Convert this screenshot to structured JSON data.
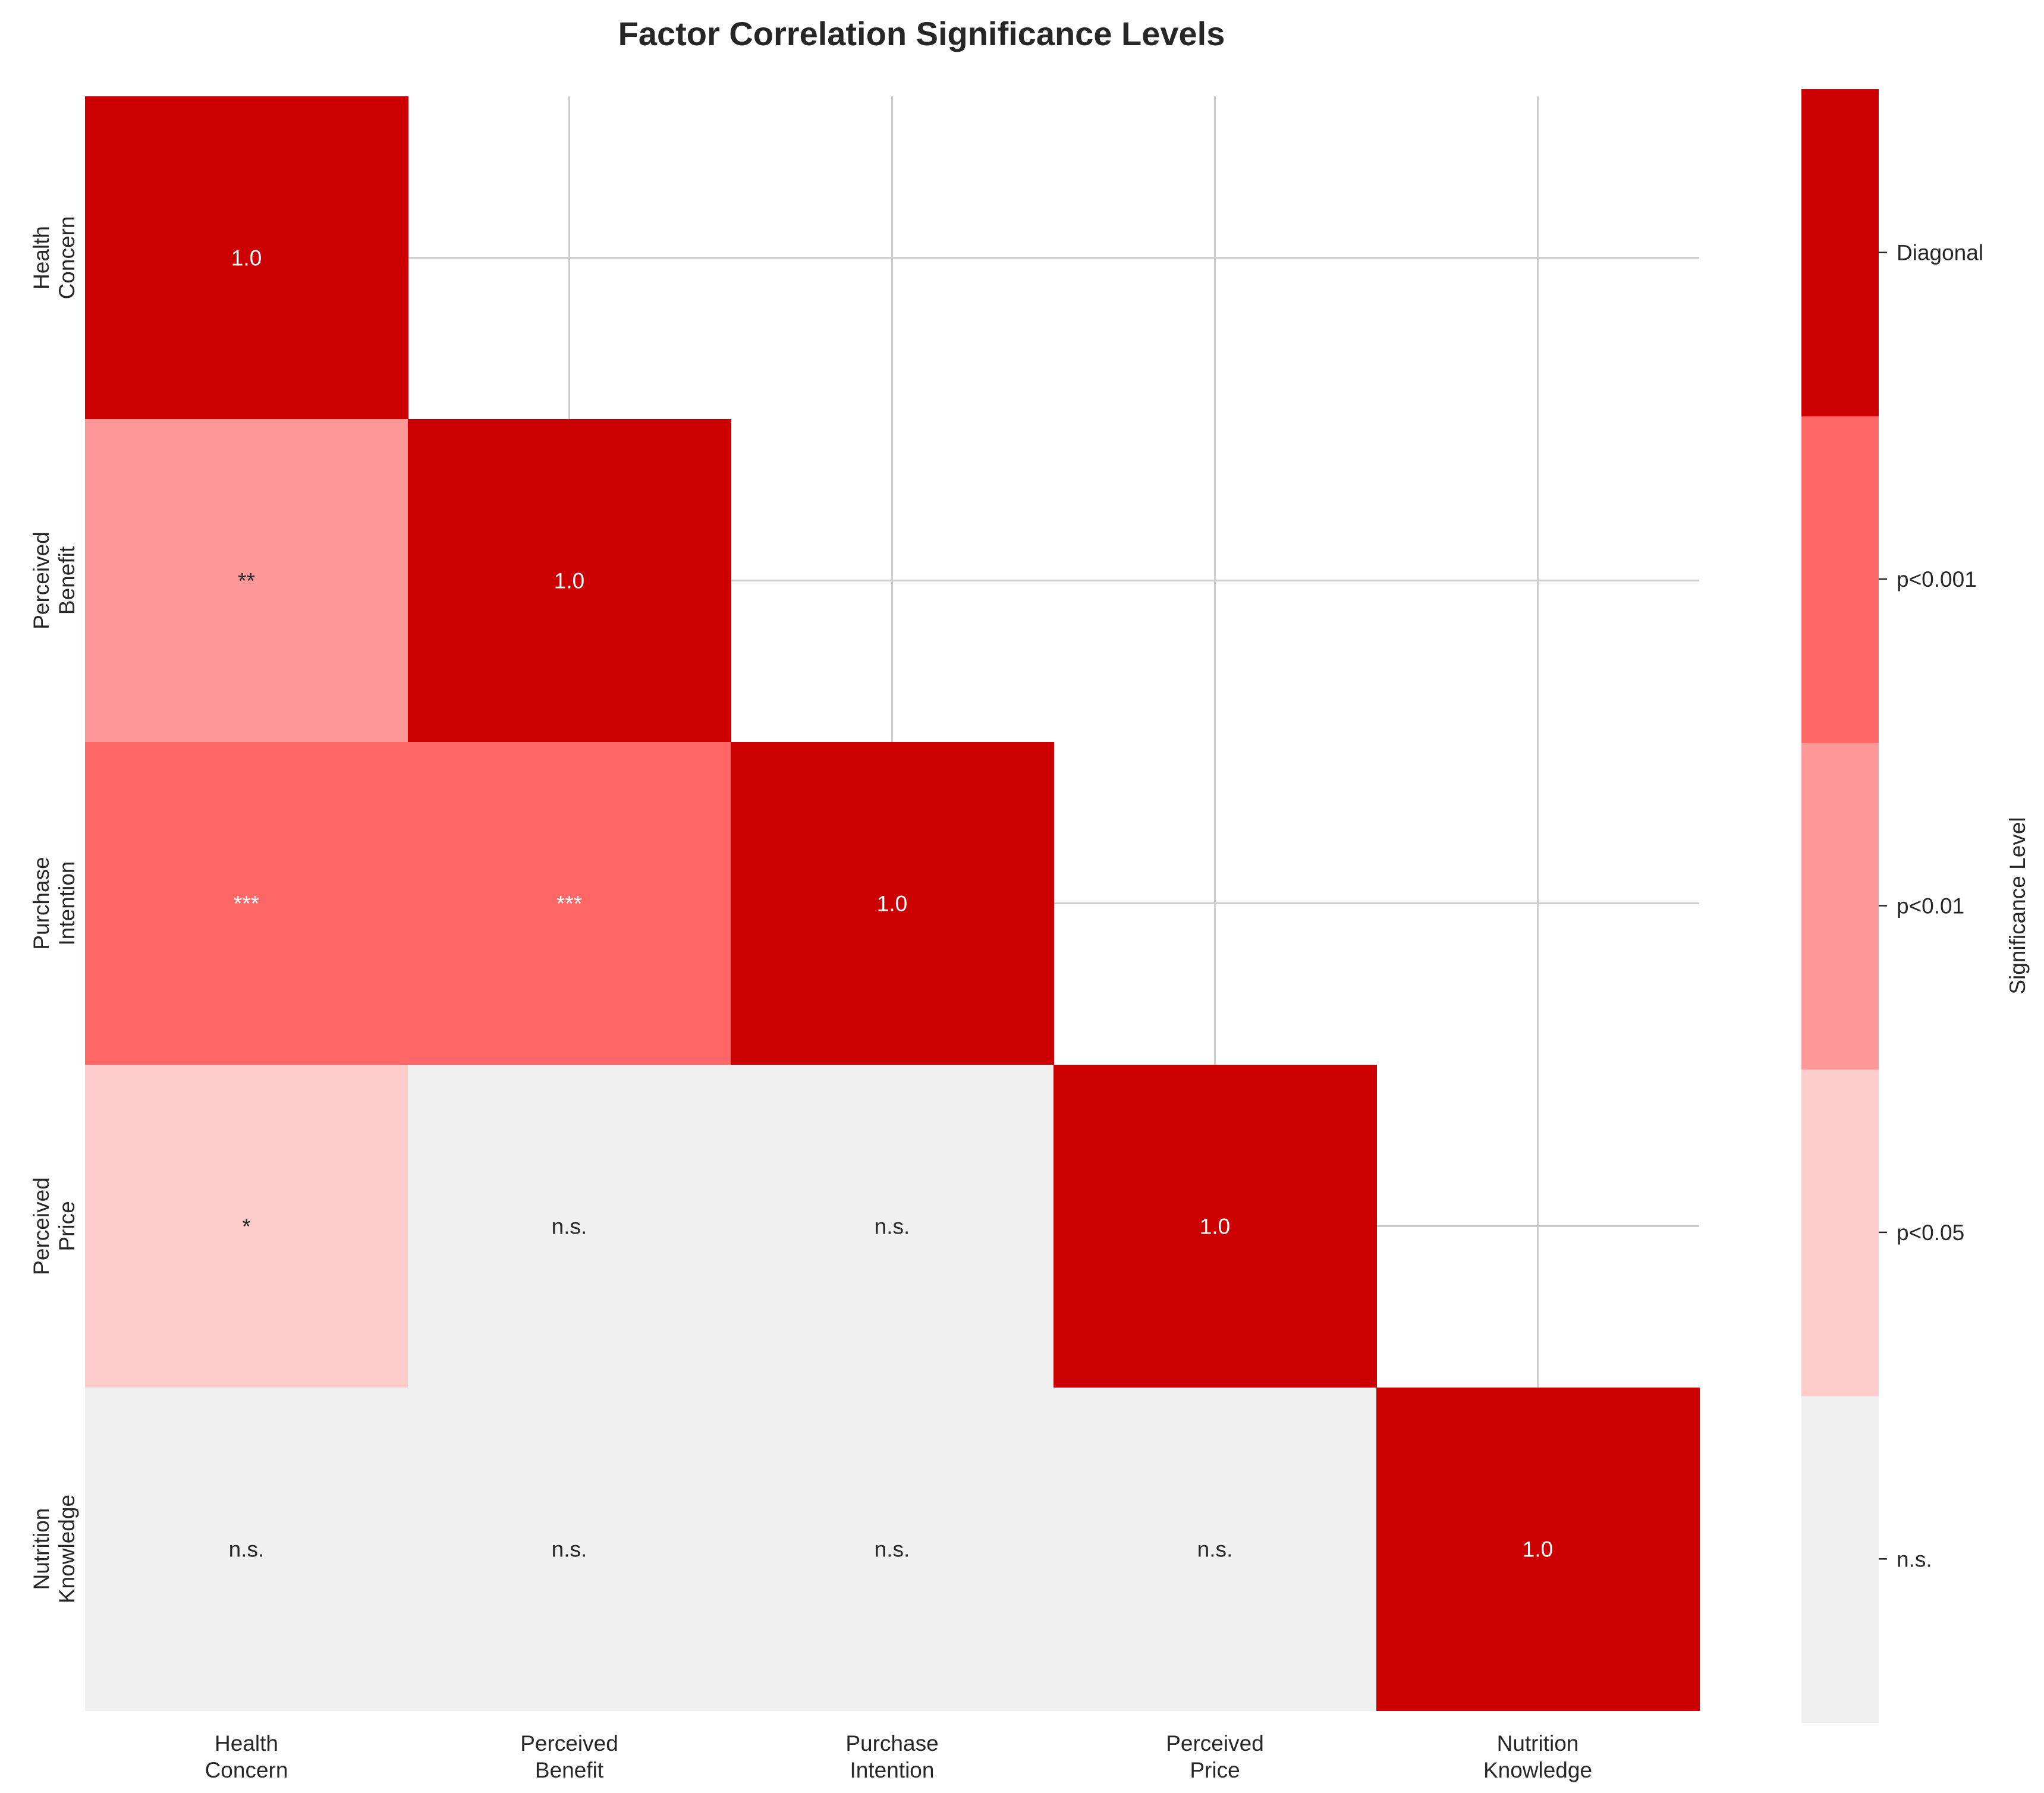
{
  "chart_data": {
    "type": "heatmap",
    "title": "Factor Correlation Significance Levels",
    "factors": [
      [
        "Health",
        "Concern"
      ],
      [
        "Perceived",
        "Benefit"
      ],
      [
        "Purchase",
        "Intention"
      ],
      [
        "Perceived",
        "Price"
      ],
      [
        "Nutrition",
        "Knowledge"
      ]
    ],
    "mask": "upper-triangle",
    "grid": true,
    "cells": [
      [
        {
          "level": 4,
          "label": "1.0"
        },
        null,
        null,
        null,
        null
      ],
      [
        {
          "level": 2,
          "label": "**"
        },
        {
          "level": 4,
          "label": "1.0"
        },
        null,
        null,
        null
      ],
      [
        {
          "level": 3,
          "label": "***"
        },
        {
          "level": 3,
          "label": "***"
        },
        {
          "level": 4,
          "label": "1.0"
        },
        null,
        null
      ],
      [
        {
          "level": 1,
          "label": "*"
        },
        {
          "level": 0,
          "label": "n.s."
        },
        {
          "level": 0,
          "label": "n.s."
        },
        {
          "level": 4,
          "label": "1.0"
        },
        null
      ],
      [
        {
          "level": 0,
          "label": "n.s."
        },
        {
          "level": 0,
          "label": "n.s."
        },
        {
          "level": 0,
          "label": "n.s."
        },
        {
          "level": 0,
          "label": "n.s."
        },
        {
          "level": 4,
          "label": "1.0"
        }
      ]
    ],
    "colorbar": {
      "label": "Significance Level",
      "levels": [
        "n.s.",
        "p<0.05",
        "p<0.01",
        "p<0.001",
        "Diagonal"
      ],
      "colors": [
        "#f0f0f0",
        "#ffcccc",
        "#ff9999",
        "#ff6666",
        "#cc0000"
      ]
    },
    "text_colors": [
      "#262626",
      "#262626",
      "#262626",
      "#ffffff",
      "#ffffff"
    ],
    "grid_color": "#cccccc"
  }
}
